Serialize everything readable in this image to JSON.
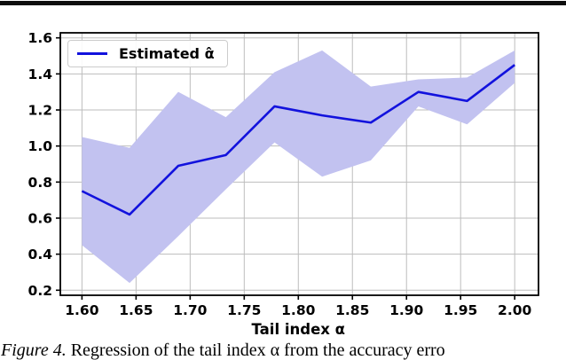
{
  "legend": {
    "entries": [
      {
        "label": "Estimated α̂",
        "color": "#1212dd"
      }
    ]
  },
  "caption": {
    "figure_label": "Figure 4.",
    "text": " Regression of the tail index α from the accuracy erro"
  },
  "chart_data": {
    "type": "line",
    "title": "",
    "xlabel": "Tail index α",
    "ylabel": "",
    "xlim": [
      1.58,
      2.022
    ],
    "ylim": [
      0.172,
      1.628
    ],
    "grid": true,
    "legend_position": "upper left",
    "x_ticks": {
      "values": [
        1.6,
        1.65,
        1.7,
        1.75,
        1.8,
        1.85,
        1.9,
        1.95,
        2.0
      ],
      "labels": [
        "1.60",
        "1.65",
        "1.70",
        "1.75",
        "1.80",
        "1.85",
        "1.90",
        "1.95",
        "2.00"
      ]
    },
    "y_ticks": {
      "values": [
        0.2,
        0.4,
        0.6,
        0.8,
        1.0,
        1.2,
        1.4,
        1.6
      ],
      "labels": [
        "0.2",
        "0.4",
        "0.6",
        "0.8",
        "1.0",
        "1.2",
        "1.4",
        "1.6"
      ]
    },
    "x": [
      1.6,
      1.644,
      1.689,
      1.733,
      1.778,
      1.822,
      1.867,
      1.911,
      1.956,
      2.0
    ],
    "series": [
      {
        "name": "Estimated α̂",
        "values": [
          0.75,
          0.62,
          0.89,
          0.95,
          1.22,
          1.17,
          1.13,
          1.3,
          1.25,
          1.45
        ]
      }
    ],
    "band": {
      "upper": [
        1.05,
        0.99,
        1.3,
        1.16,
        1.41,
        1.53,
        1.33,
        1.37,
        1.38,
        1.53
      ],
      "lower": [
        0.45,
        0.24,
        0.5,
        0.76,
        1.02,
        0.83,
        0.92,
        1.22,
        1.12,
        1.35
      ]
    },
    "colors": {
      "line": "#1212dd",
      "band": "#c2c2f0",
      "grid": "#bdbdbd",
      "spine": "#000000",
      "tick_text": "#000000"
    }
  }
}
